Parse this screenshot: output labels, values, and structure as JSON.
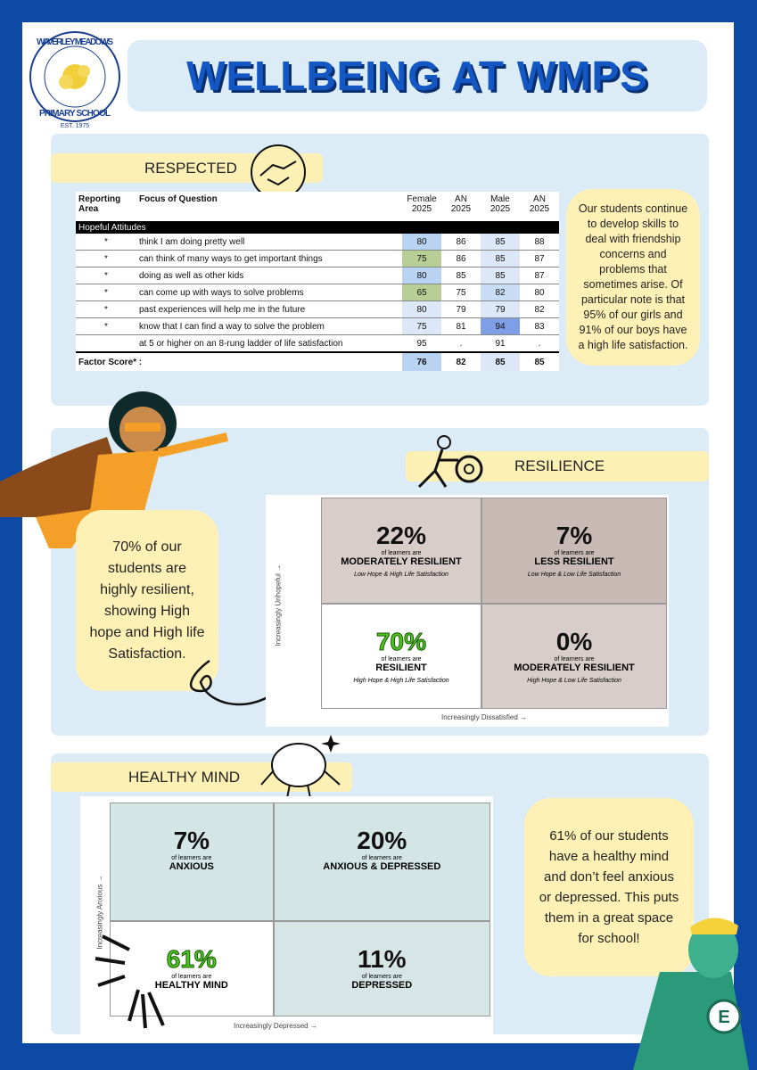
{
  "logo": {
    "top": "WAVERLEY MEADOWS",
    "bottom": "PRIMARY SCHOOL",
    "est": "EST. 1975"
  },
  "title": "WELLBEING AT WMPS",
  "respected": {
    "heading": "RESPECTED",
    "table": {
      "header": [
        "Reporting Area",
        "Focus of Question",
        "Female 2025",
        "AN 2025",
        "Male 2025",
        "AN 2025"
      ],
      "group": "Hopeful Attitudes",
      "rows": [
        {
          "marker": "*",
          "question": "think I am doing pretty well",
          "values": [
            80,
            86,
            85,
            88
          ],
          "colors": [
            "#b9d3f2",
            null,
            "#dce8f8",
            null
          ]
        },
        {
          "marker": "*",
          "question": "can think of many ways to get important things",
          "values": [
            75,
            86,
            85,
            87
          ],
          "colors": [
            "#b7cf95",
            null,
            "#dce8f8",
            null
          ]
        },
        {
          "marker": "*",
          "question": "doing as well as other kids",
          "values": [
            80,
            85,
            85,
            87
          ],
          "colors": [
            "#b9d3f2",
            null,
            "#dce8f8",
            null
          ]
        },
        {
          "marker": "*",
          "question": "can come up with ways to solve problems",
          "values": [
            65,
            75,
            82,
            80
          ],
          "colors": [
            "#b7cf95",
            null,
            "#c9dcf6",
            null
          ]
        },
        {
          "marker": "*",
          "question": "past experiences will help me in the future",
          "values": [
            80,
            79,
            79,
            82
          ],
          "colors": [
            "#dce8f8",
            null,
            "#dce8f8",
            null
          ]
        },
        {
          "marker": "*",
          "question": "know that I can find a way to solve the problem",
          "values": [
            75,
            81,
            94,
            83
          ],
          "colors": [
            "#dce8f8",
            null,
            "#7e9ee6",
            null
          ]
        },
        {
          "question": "at 5 or higher on an 8-rung ladder of life satisfaction",
          "values": [
            95,
            ".",
            91,
            "."
          ],
          "colors": [
            null,
            null,
            null,
            null
          ]
        }
      ],
      "footer": {
        "label": "Factor Score* :",
        "values": [
          76,
          82,
          85,
          85
        ],
        "colors": [
          "#b9d3f2",
          null,
          "#dce8f8",
          null
        ]
      }
    },
    "note": "Our students continue to develop skills to deal with friendship concerns and problems that sometimes arise. Of particular note is that 95% of our girls and 91% of our boys have a high life satisfaction."
  },
  "resilience": {
    "heading": "RESILIENCE",
    "note": "70% of our students are highly resilient, showing High hope and High life Satisfaction.",
    "y_axis": "Increasingly Unhopeful →",
    "x_axis": "Increasingly Dissatisfied →",
    "quadrants": [
      {
        "percent": "22%",
        "pre": "of learners are",
        "label": "MODERATELY RESILIENT",
        "sub": "Low Hope & High Life Satisfaction",
        "color": "#111111",
        "bg": "#d9cdca"
      },
      {
        "percent": "7%",
        "pre": "of learners are",
        "label": "LESS RESILIENT",
        "sub": "Low Hope & Low Life Satisfaction",
        "color": "#111111",
        "bg": "#c8bab5"
      },
      {
        "percent": "70%",
        "pre": "of learners are",
        "label": "RESILIENT",
        "sub": "High Hope & High Life Satisfaction",
        "color": "#4ec31c",
        "bg": "#ffffff"
      },
      {
        "percent": "0%",
        "pre": "of learners are",
        "label": "MODERATELY RESILIENT",
        "sub": "High Hope & Low Life Satisfaction",
        "color": "#111111",
        "bg": "#d8cdca"
      }
    ]
  },
  "healthy_mind": {
    "heading": "HEALTHY MIND",
    "note": "61% of our students have a healthy mind and don’t feel anxious or depressed. This puts them in a great space for school!",
    "y_axis": "Increasingly Anxious →",
    "x_axis": "Increasingly Depressed →",
    "quadrants": [
      {
        "percent": "7%",
        "pre": "of learners are",
        "label": "ANXIOUS",
        "color": "#111111",
        "bg": "#d4e5e5"
      },
      {
        "percent": "20%",
        "pre": "of learners are",
        "label": "ANXIOUS & DEPRESSED",
        "color": "#111111",
        "bg": "#d4e5e5"
      },
      {
        "percent": "61%",
        "pre": "of learners are",
        "label": "HEALTHY MIND",
        "color": "#4ec31c",
        "bg": "#ffffff"
      },
      {
        "percent": "11%",
        "pre": "of learners are",
        "label": "DEPRESSED",
        "color": "#111111",
        "bg": "#d6e6e7"
      }
    ]
  }
}
